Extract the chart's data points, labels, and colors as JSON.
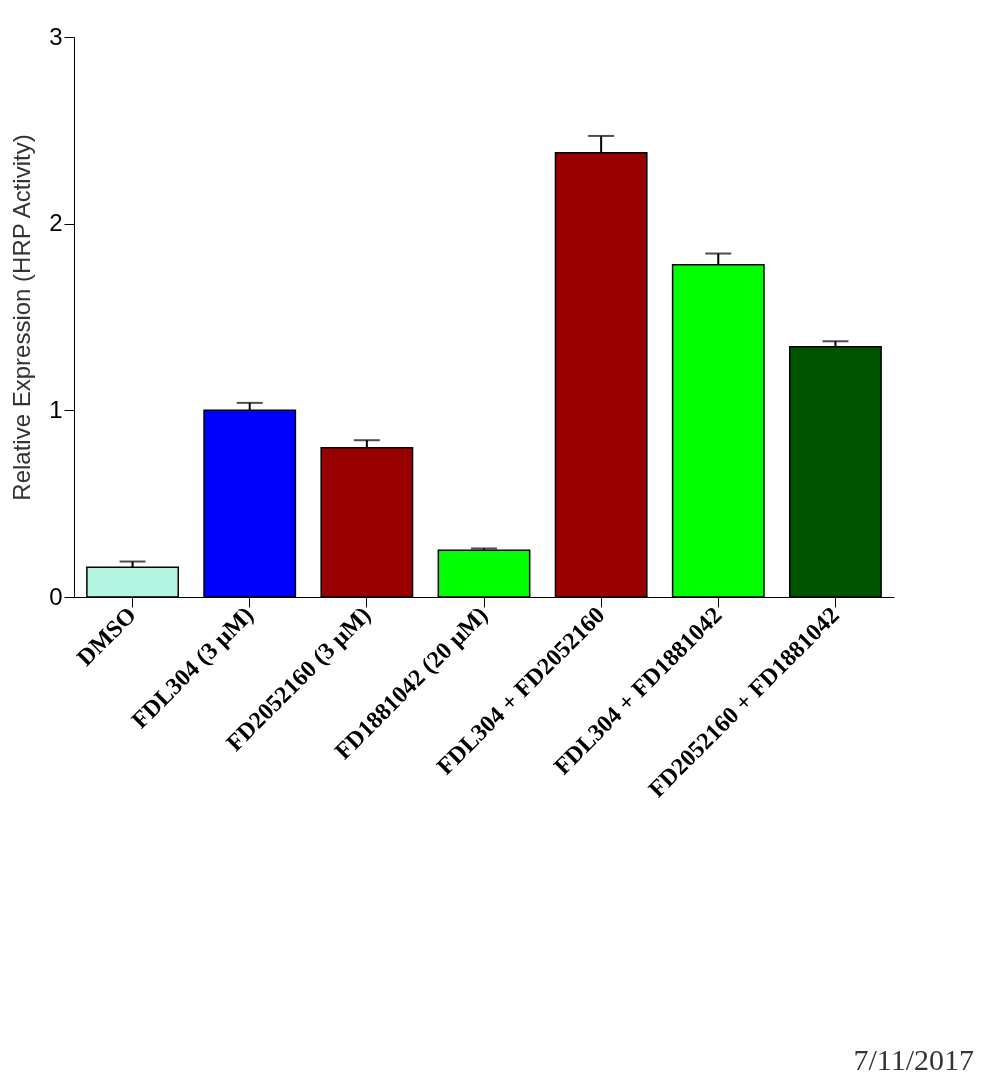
{
  "chart_data": {
    "type": "bar",
    "ylabel": "Relative Expression (HRP Activity)",
    "categories": [
      "DMSO",
      "FDL304 (3 μM)",
      "FD2052160 (3 μM)",
      "FD1881042 (20 μM)",
      "FDL304 + FD2052160",
      "FDL304 + FD1881042",
      "FD2052160 + FD1881042"
    ],
    "values": [
      0.16,
      1.0,
      0.8,
      0.25,
      2.38,
      1.78,
      1.34
    ],
    "errors": [
      0.03,
      0.04,
      0.04,
      0.01,
      0.09,
      0.06,
      0.03
    ],
    "colors": [
      "#b3f5e0",
      "#0000ff",
      "#990000",
      "#00ff00",
      "#990000",
      "#00ff00",
      "#005500"
    ],
    "ylim": [
      0,
      3
    ],
    "yticks": [
      0,
      1,
      2,
      3
    ],
    "grid": false,
    "annotations": [
      "7/11/2017"
    ]
  }
}
